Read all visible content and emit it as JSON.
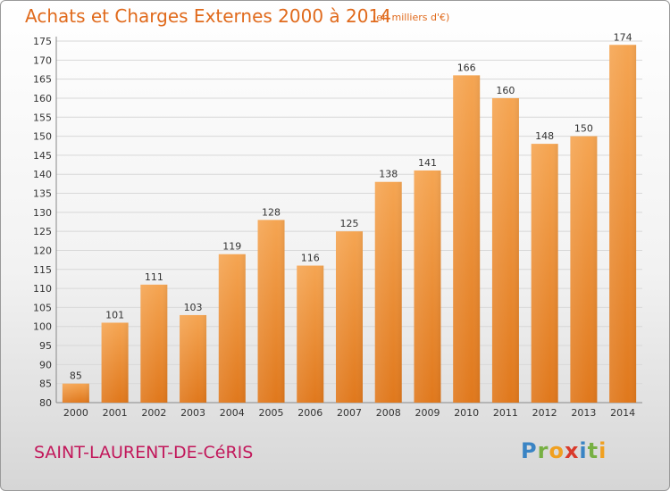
{
  "title": "Achats et Charges Externes 2000 à 2014",
  "subtitle": "(en milliers d'€)",
  "place": "SAINT-LAURENT-DE-CéRIS",
  "logo": "Proxiti",
  "colors": {
    "bar_top": "#f5a552",
    "bar_bottom": "#e0781c",
    "title": "#e06a1c",
    "place": "#c2185b"
  },
  "chart_data": {
    "type": "bar",
    "categories": [
      "2000",
      "2001",
      "2002",
      "2003",
      "2004",
      "2005",
      "2006",
      "2007",
      "2008",
      "2009",
      "2010",
      "2011",
      "2012",
      "2013",
      "2014"
    ],
    "values": [
      85,
      101,
      111,
      103,
      119,
      128,
      116,
      125,
      138,
      141,
      166,
      160,
      148,
      150,
      174
    ],
    "ylim": [
      80,
      175
    ],
    "yticks": [
      80,
      85,
      90,
      95,
      100,
      105,
      110,
      115,
      120,
      125,
      130,
      135,
      140,
      145,
      150,
      155,
      160,
      165,
      170,
      175
    ],
    "grid": true
  }
}
